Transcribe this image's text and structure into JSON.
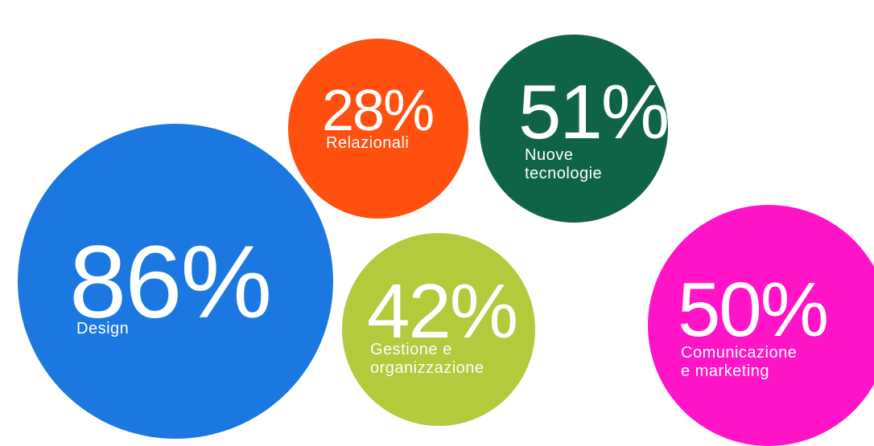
{
  "chart_data": {
    "type": "bubble",
    "categories": [
      "Design",
      "Relazionali",
      "Nuove\ntecnologie",
      "Gestione e\norganizzazione",
      "Comunicazione\ne marketing"
    ],
    "values": [
      86,
      28,
      51,
      42,
      50
    ],
    "value_labels": [
      "86%",
      "28%",
      "51%",
      "42%",
      "50%"
    ],
    "colors": [
      "#1b78e0",
      "#ff5010",
      "#0f6445",
      "#b2ca3c",
      "#ff14c8"
    ]
  }
}
